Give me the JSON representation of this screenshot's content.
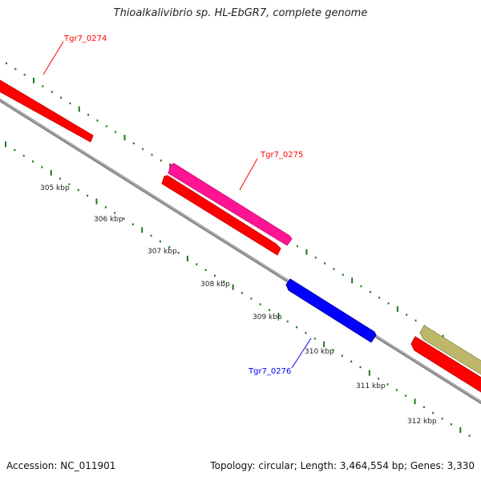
{
  "title": "Thioalkalivibrio sp. HL-EbGR7, complete genome",
  "footer": {
    "accession": "Accession: NC_011901",
    "summary": "Topology: circular; Length: 3,464,554 bp; Genes: 3,330"
  },
  "scale_labels": [
    "305 kbp",
    "306 kbp",
    "307 kbp",
    "308 kbp",
    "309 kbp",
    "310 kbp",
    "311 kbp",
    "312 kbp"
  ],
  "gene_labels": [
    {
      "text": "Tgr7_0274",
      "color": "#ff0000"
    },
    {
      "text": "Tgr7_0275",
      "color": "#ff0000"
    },
    {
      "text": "Tgr7_0276",
      "color": "#0000ff"
    }
  ],
  "colors": {
    "backbone": "#8a8a8a",
    "cds_red": "#ff0000",
    "cds_pink": "#ff1493",
    "cds_blue": "#0000ff",
    "cds_olive": "#bdb76b",
    "tick_green": "#1a7a1a"
  }
}
